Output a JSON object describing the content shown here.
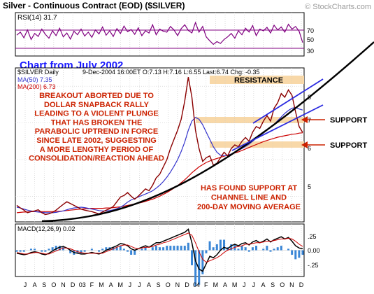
{
  "header": {
    "title": "Silver - Continuous Contract (EOD) ($SILVER)",
    "copyright": "© StockCharts.com"
  },
  "rsi": {
    "label": "RSI(14) 31.7",
    "ticks": [
      "70",
      "50",
      "30"
    ],
    "overlay_text": "Chart from July 2002"
  },
  "price_panel": {
    "symbol_label": "$SILVER Daily",
    "quote": "9-Dec-2004 16:00ET O:7.13 H:7.16 L:6.55 Last:6.74 Chg: -0.35",
    "ma50_label": "MA(50) 7.35",
    "ma200_label": "MA(200) 6.73",
    "y_ticks": [
      "8",
      "7",
      "6",
      "5"
    ],
    "annotations": {
      "main_comment": [
        "BREAKOUT ABORTED DUE TO",
        "DOLLAR SNAPBACK RALLY",
        "LEADING TO A VIOLENT PLUNGE",
        "THAT HAS BROKEN THE",
        "PARABOLIC UPTREND IN FORCE",
        "SINCE LATE 2002, SUGGESTING",
        "A MORE LENGTHY PERIOD OF",
        "CONSOLIDATION/REACTION AHEAD"
      ],
      "support_comment": [
        "HAS FOUND SUPPORT AT",
        "CHANNEL LINE AND",
        "200-DAY MOVING AVERAGE"
      ],
      "resistance": "RESISTANCE",
      "support_upper": "SUPPORT",
      "support_lower": "SUPPORT"
    }
  },
  "macd": {
    "label": "MACD(12,26,9) 0.02",
    "ticks": [
      ".25",
      "0.00",
      "-.25"
    ]
  },
  "x_axis": {
    "labels": [
      "J",
      "A",
      "S",
      "O",
      "N",
      "D",
      "03",
      "F",
      "M",
      "A",
      "M",
      "J",
      "J",
      "A",
      "S",
      "O",
      "N",
      "D",
      "04",
      "F",
      "M",
      "A",
      "M",
      "J",
      "J",
      "A",
      "S",
      "O",
      "N",
      "D"
    ]
  },
  "colors": {
    "panel_bg": "#ffffff",
    "grid": "#c9c9c9",
    "price": "#8b0000",
    "ma50": "#3333cc",
    "ma200": "#cc0000",
    "annotation_red": "#cc2200",
    "highlight_band": "#f8d8a8",
    "chart_from_label": "#1a1aff"
  },
  "chart_data": [
    {
      "type": "line",
      "title": "RSI(14) 31.7",
      "ylim": [
        0,
        100
      ],
      "y_ticks": [
        30,
        50,
        70
      ],
      "series": [
        {
          "name": "RSI(14)",
          "values": [
            48,
            55,
            42,
            60,
            38,
            52,
            45,
            62,
            50,
            41,
            58,
            47,
            64,
            44,
            53,
            39,
            57,
            49,
            62,
            46,
            55,
            43,
            60,
            51,
            67,
            48,
            58,
            45,
            63,
            52,
            69,
            56,
            61,
            50,
            65,
            47,
            58,
            53,
            72,
            49,
            62,
            57,
            55,
            68,
            60,
            47,
            63,
            72,
            59,
            53,
            77,
            55,
            68,
            44,
            35,
            27,
            33,
            29,
            38,
            44,
            52,
            41,
            58,
            49,
            64,
            55,
            70,
            47,
            62,
            58,
            66,
            53,
            71,
            60,
            67,
            55,
            73,
            62,
            68,
            57,
            31
          ]
        }
      ]
    },
    {
      "type": "line",
      "title": "$SILVER Daily",
      "ylim": [
        4.3,
        8.5
      ],
      "y_ticks": [
        5,
        6,
        7,
        8
      ],
      "series": [
        {
          "name": "Price",
          "values": [
            4.75,
            4.68,
            4.62,
            4.55,
            4.58,
            4.6,
            4.63,
            4.55,
            4.5,
            4.52,
            4.56,
            4.62,
            4.7,
            4.78,
            4.85,
            4.8,
            4.75,
            4.7,
            4.65,
            4.62,
            4.6,
            4.58,
            4.55,
            4.52,
            4.57,
            4.62,
            4.66,
            4.72,
            4.85,
            4.98,
            5.02,
            5.1,
            5.0,
            4.92,
            5.0,
            5.1,
            5.2,
            5.15,
            5.3,
            5.5,
            5.6,
            5.8,
            6.0,
            6.3,
            6.55,
            6.8,
            7.1,
            7.6,
            8.25,
            7.7,
            6.8,
            6.3,
            5.95,
            6.05,
            6.1,
            5.85,
            5.9,
            6.05,
            6.2,
            6.1,
            6.3,
            6.4,
            6.35,
            6.5,
            6.6,
            6.5,
            6.75,
            6.9,
            6.85,
            7.05,
            7.2,
            7.05,
            7.4,
            7.55,
            7.8,
            7.7,
            7.9,
            7.75,
            7.3,
            6.9,
            6.74
          ]
        },
        {
          "name": "MA(50)",
          "values": [
            4.7,
            4.68,
            4.65,
            4.62,
            4.6,
            4.58,
            4.57,
            4.56,
            4.55,
            4.55,
            4.55,
            4.56,
            4.58,
            4.6,
            4.63,
            4.66,
            4.68,
            4.69,
            4.7,
            4.69,
            4.67,
            4.65,
            4.63,
            4.61,
            4.6,
            4.6,
            4.61,
            4.63,
            4.66,
            4.7,
            4.76,
            4.84,
            4.9,
            4.94,
            4.98,
            5.02,
            5.06,
            5.1,
            5.15,
            5.22,
            5.3,
            5.4,
            5.52,
            5.66,
            5.82,
            6.0,
            6.22,
            6.48,
            6.8,
            7.05,
            7.15,
            7.1,
            6.95,
            6.75,
            6.55,
            6.35,
            6.2,
            6.12,
            6.1,
            6.12,
            6.15,
            6.2,
            6.25,
            6.3,
            6.36,
            6.42,
            6.5,
            6.58,
            6.65,
            6.72,
            6.8,
            6.88,
            6.96,
            7.06,
            7.16,
            7.26,
            7.34,
            7.4,
            7.42,
            7.38,
            7.35
          ]
        },
        {
          "name": "MA(200)",
          "values": [
            4.55,
            4.56,
            4.57,
            4.57,
            4.58,
            4.58,
            4.58,
            4.58,
            4.58,
            4.58,
            4.58,
            4.59,
            4.59,
            4.6,
            4.61,
            4.62,
            4.63,
            4.64,
            4.65,
            4.66,
            4.66,
            4.67,
            4.67,
            4.67,
            4.67,
            4.68,
            4.68,
            4.69,
            4.7,
            4.71,
            4.73,
            4.75,
            4.77,
            4.79,
            4.81,
            4.83,
            4.86,
            4.89,
            4.92,
            4.96,
            5.0,
            5.05,
            5.1,
            5.16,
            5.22,
            5.29,
            5.37,
            5.45,
            5.54,
            5.64,
            5.72,
            5.8,
            5.86,
            5.92,
            5.96,
            6.0,
            6.03,
            6.06,
            6.09,
            6.12,
            6.15,
            6.18,
            6.21,
            6.25,
            6.29,
            6.33,
            6.37,
            6.41,
            6.45,
            6.49,
            6.52,
            6.55,
            6.58,
            6.61,
            6.63,
            6.65,
            6.67,
            6.69,
            6.7,
            6.72,
            6.73
          ]
        }
      ]
    },
    {
      "type": "line",
      "title": "MACD(12,26,9) 0.02",
      "ylim": [
        -0.35,
        0.35
      ],
      "y_ticks": [
        -0.25,
        0,
        0.25
      ],
      "series": [
        {
          "name": "MACD",
          "values": [
            -0.04,
            -0.05,
            -0.06,
            -0.05,
            -0.03,
            -0.02,
            -0.03,
            -0.05,
            -0.06,
            -0.04,
            -0.01,
            0.02,
            0.04,
            0.05,
            0.03,
            0.0,
            -0.03,
            -0.04,
            -0.05,
            -0.05,
            -0.04,
            -0.03,
            -0.04,
            -0.05,
            -0.03,
            0.0,
            0.02,
            0.04,
            0.06,
            0.09,
            0.08,
            0.06,
            0.02,
            0.0,
            0.02,
            0.04,
            0.06,
            0.04,
            0.07,
            0.1,
            0.1,
            0.12,
            0.14,
            0.16,
            0.18,
            0.2,
            0.22,
            0.24,
            0.28,
            0.1,
            -0.14,
            -0.25,
            -0.28,
            -0.18,
            -0.08,
            -0.1,
            -0.06,
            0.0,
            0.04,
            0.02,
            0.06,
            0.08,
            0.06,
            0.09,
            0.1,
            0.07,
            0.11,
            0.13,
            0.1,
            0.12,
            0.15,
            0.11,
            0.14,
            0.16,
            0.18,
            0.15,
            0.17,
            0.12,
            0.06,
            0.03,
            0.02
          ]
        },
        {
          "name": "Signal",
          "values": [
            -0.03,
            -0.04,
            -0.05,
            -0.05,
            -0.04,
            -0.03,
            -0.03,
            -0.04,
            -0.05,
            -0.05,
            -0.03,
            -0.01,
            0.01,
            0.03,
            0.03,
            0.02,
            0.0,
            -0.02,
            -0.03,
            -0.04,
            -0.04,
            -0.04,
            -0.04,
            -0.04,
            -0.04,
            -0.02,
            0.0,
            0.02,
            0.04,
            0.06,
            0.07,
            0.07,
            0.05,
            0.03,
            0.02,
            0.03,
            0.04,
            0.04,
            0.05,
            0.07,
            0.08,
            0.1,
            0.11,
            0.13,
            0.15,
            0.17,
            0.19,
            0.21,
            0.23,
            0.2,
            0.1,
            -0.02,
            -0.12,
            -0.16,
            -0.14,
            -0.12,
            -0.1,
            -0.07,
            -0.03,
            0.0,
            0.02,
            0.04,
            0.05,
            0.06,
            0.08,
            0.08,
            0.09,
            0.1,
            0.1,
            0.11,
            0.12,
            0.12,
            0.13,
            0.14,
            0.15,
            0.15,
            0.16,
            0.15,
            0.12,
            0.08,
            0.05
          ]
        }
      ]
    }
  ]
}
